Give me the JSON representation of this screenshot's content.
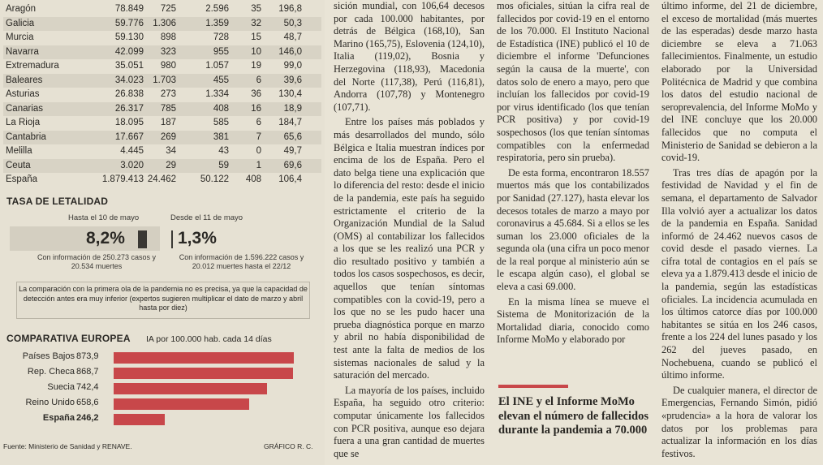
{
  "regions": [
    {
      "name": "Aragón",
      "c1": "78.849",
      "c2": "725",
      "c3": "2.596",
      "c4": "35",
      "c5": "196,8"
    },
    {
      "name": "Galicia",
      "c1": "59.776",
      "c2": "1.306",
      "c3": "1.359",
      "c4": "32",
      "c5": "50,3"
    },
    {
      "name": "Murcia",
      "c1": "59.130",
      "c2": "898",
      "c3": "728",
      "c4": "15",
      "c5": "48,7"
    },
    {
      "name": "Navarra",
      "c1": "42.099",
      "c2": "323",
      "c3": "955",
      "c4": "10",
      "c5": "146,0"
    },
    {
      "name": "Extremadura",
      "c1": "35.051",
      "c2": "980",
      "c3": "1.057",
      "c4": "19",
      "c5": "99,0"
    },
    {
      "name": "Baleares",
      "c1": "34.023",
      "c2": "1.703",
      "c3": "455",
      "c4": "6",
      "c5": "39,6"
    },
    {
      "name": "Asturias",
      "c1": "26.838",
      "c2": "273",
      "c3": "1.334",
      "c4": "36",
      "c5": "130,4"
    },
    {
      "name": "Canarias",
      "c1": "26.317",
      "c2": "785",
      "c3": "408",
      "c4": "16",
      "c5": "18,9"
    },
    {
      "name": "La Rioja",
      "c1": "18.095",
      "c2": "187",
      "c3": "585",
      "c4": "6",
      "c5": "184,7"
    },
    {
      "name": "Cantabria",
      "c1": "17.667",
      "c2": "269",
      "c3": "381",
      "c4": "7",
      "c5": "65,6"
    },
    {
      "name": "Melilla",
      "c1": "4.445",
      "c2": "34",
      "c3": "43",
      "c4": "0",
      "c5": "49,7"
    },
    {
      "name": "Ceuta",
      "c1": "3.020",
      "c2": "29",
      "c3": "59",
      "c4": "1",
      "c5": "69,6"
    },
    {
      "name": "España",
      "c1": "1.879.413",
      "c2": "24.462",
      "c3": "50.122",
      "c4": "408",
      "c5": "106,4"
    }
  ],
  "lethality": {
    "title": "TASA DE LETALIDAD",
    "before_label": "Hasta el 10 de mayo",
    "after_label": "Desde el 11 de mayo",
    "before_value": "8,2%",
    "after_value": "1,3%",
    "before_fraction": 0.082,
    "after_fraction": 0.013,
    "before_note": "Con información de 250.273 casos y 20.534 muertes",
    "after_note": "Con información de 1.596.222 casos y 20.012 muertes hasta el 22/12",
    "comparison_note": "La comparación con la primera ola de la pandemia no es precisa, ya que la capacidad de detección antes era muy inferior (expertos sugieren multiplicar el dato de marzo y abril hasta por diez)"
  },
  "chart_data": {
    "type": "bar",
    "title": "COMPARATIVA EUROPEA",
    "subtitle": "IA por 100.000 hab. cada 14 días",
    "categories": [
      "Países Bajos",
      "Rep. Checa",
      "Suecia",
      "Reino Unido",
      "España"
    ],
    "values": [
      873.9,
      868.7,
      742.4,
      658.6,
      246.2
    ],
    "value_labels": [
      "873,9",
      "868,7",
      "742,4",
      "658,6",
      "246,2"
    ],
    "colors": {
      "bar": "#c8474a"
    }
  },
  "footer": {
    "source": "Fuente: Ministerio de Sanidad y RENAVE.",
    "credit": "GRÁFICO R. C."
  },
  "article": {
    "col1": [
      "sición mundial, con 106,64 decesos por cada 100.000 habitantes, por detrás de Bélgica (168,10), San Marino (165,75), Eslovenia (124,10), Italia (119,02), Bosnia y Herzegovina (118,93), Macedonia del Norte (117,38), Perú (116,81), Andorra (107,78) y Montenegro (107,71).",
      "Entre los países más poblados y más desarrollados del mundo, sólo Bélgica e Italia muestran índices por encima de los de España. Pero el dato belga tiene una explicación que lo diferencia del resto: desde el inicio de la pandemia, este país ha seguido estrictamente el criterio de la Organización Mundial de la Salud (OMS) al contabilizar los fallecidos a los que se les realizó una PCR y dio resultado positivo y también a todos los casos sospechosos, es decir, aquellos que tenían síntomas compatibles con la covid-19, pero a los que no se les pudo hacer una prueba diagnóstica porque en marzo y abril no había disponibilidad de test ante la falta de medios de los sistemas nacionales de salud y la saturación del mercado.",
      "La mayoría de los países, incluido España, ha seguido otro criterio: computar únicamente los fallecidos con PCR positiva, aunque eso dejara fuera a una gran cantidad de muertes que se"
    ],
    "col2": [
      "mos oficiales, sitúan la cifra real de fallecidos por covid-19 en el entorno de los 70.000. El Instituto Nacional de Estadística (INE) publicó el 10 de diciembre el informe 'Defunciones según la causa de la muerte', con datos solo de enero a mayo, pero que incluían los fallecidos por covid-19 por virus identificado (los que tenían PCR positiva) y por covid-19 sospechosos (los que tenían síntomas compatibles con la enfermedad respiratoria, pero sin prueba).",
      "De esta forma, encontraron 18.557 muertos más que los contabilizados por Sanidad (27.127), hasta elevar los decesos totales de marzo a mayo por coronavirus a 45.684. Si a ellos se les suman los 23.000 oficiales de la segunda ola (una cifra un poco menor de la real porque al ministerio aún se le escapa algún caso), el global se eleva a casi 69.000.",
      "En la misma línea se mueve el Sistema de Monitorización de la Mortalidad diaria, conocido como Informe MoMo y elaborado por"
    ],
    "pull_quote": "El INE y el Informe MoMo elevan el número de fallecidos durante la pandemia a 70.000",
    "col3": [
      "último informe, del 21 de diciembre, el exceso de mortalidad (más muertes de las esperadas) desde marzo hasta diciembre se eleva a 71.063 fallecimientos. Finalmente, un estudio elaborado por la Universidad Politécnica de Madrid y que combina los datos del estudio nacional de seroprevalencia, del Informe MoMo y del INE concluye que los 20.000 fallecidos que no computa el Ministerio de Sanidad se debieron a la covid-19.",
      "Tras tres días de apagón por la festividad de Navidad y el fin de semana, el departamento de Salvador Illa volvió ayer a actualizar los datos de la pandemia en España. Sanidad informó de 24.462 nuevos casos de covid desde el pasado viernes. La cifra total de contagios en el país se eleva ya a 1.879.413 desde el inicio de la pandemia, según las estadísticas oficiales. La incidencia acumulada en los últimos catorce días por 100.000 habitantes se sitúa en los 246 casos, frente a los 224 del lunes pasado y los 262 del jueves pasado, en Nochebuena, cuando se publicó el último informe.",
      "De cualquier manera, el director de Emergencias, Fernando Simón, pidió «prudencia» a la hora de valorar los datos por los problemas para actualizar la información en los días festivos."
    ]
  }
}
